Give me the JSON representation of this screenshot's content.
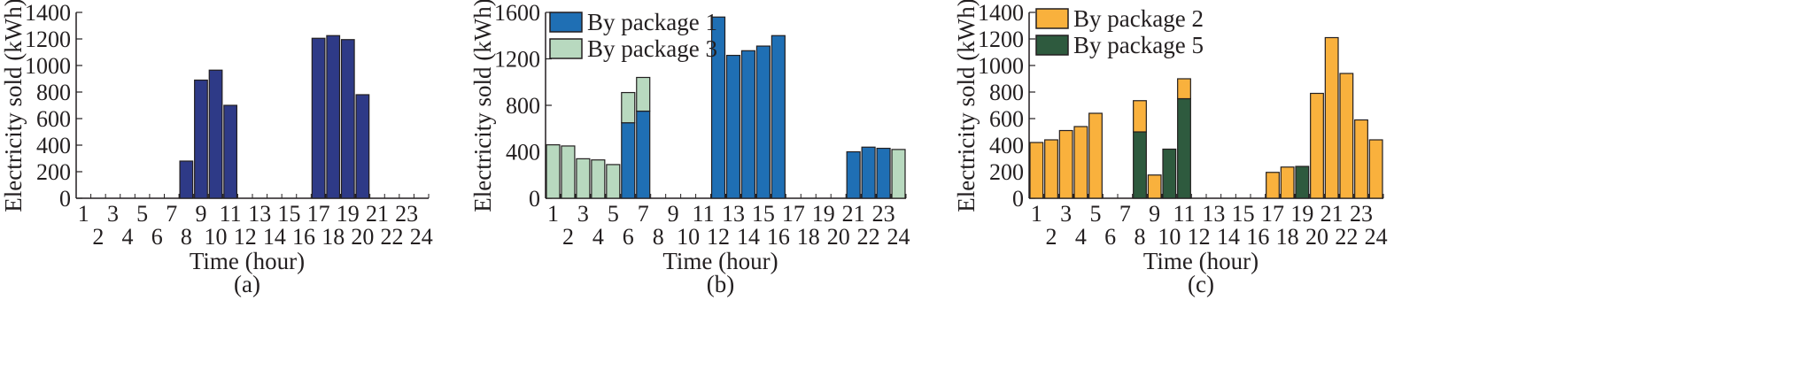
{
  "chart_data": [
    {
      "type": "bar",
      "panel_label": "(a)",
      "xlabel": "Time (hour)",
      "ylabel": "Electricity sold (kWh)",
      "ylim": [
        0,
        1400
      ],
      "yticks": [
        0,
        200,
        400,
        600,
        800,
        1000,
        1200,
        1400
      ],
      "categories": [
        "1",
        "2",
        "3",
        "4",
        "5",
        "6",
        "7",
        "8",
        "9",
        "10",
        "11",
        "12",
        "13",
        "14",
        "15",
        "16",
        "17",
        "18",
        "19",
        "20",
        "21",
        "22",
        "23",
        "24"
      ],
      "legend": "none",
      "series": [
        {
          "color": "#2e3a87",
          "values": [
            0,
            0,
            0,
            0,
            0,
            0,
            0,
            280,
            890,
            965,
            700,
            0,
            0,
            0,
            0,
            0,
            1205,
            1225,
            1195,
            780,
            0,
            0,
            0,
            0
          ]
        }
      ]
    },
    {
      "type": "bar",
      "panel_label": "(b)",
      "xlabel": "Time (hour)",
      "ylabel": "Electricity sold (kWh)",
      "ylim": [
        0,
        1600
      ],
      "yticks": [
        0,
        400,
        800,
        1200,
        1600
      ],
      "categories": [
        "1",
        "2",
        "3",
        "4",
        "5",
        "6",
        "7",
        "8",
        "9",
        "10",
        "11",
        "12",
        "13",
        "14",
        "15",
        "16",
        "17",
        "18",
        "19",
        "20",
        "21",
        "22",
        "23",
        "24"
      ],
      "legend": "top-left",
      "stacked": true,
      "series": [
        {
          "name": "By package 1",
          "color": "#1f6fb4",
          "values": [
            0,
            0,
            0,
            0,
            0,
            650,
            750,
            0,
            0,
            0,
            0,
            1560,
            1230,
            1270,
            1310,
            1400,
            0,
            0,
            0,
            0,
            400,
            440,
            430,
            0
          ]
        },
        {
          "name": "By package 3",
          "color": "#b8d9bf",
          "values": [
            460,
            450,
            340,
            330,
            290,
            260,
            290,
            0,
            0,
            0,
            0,
            0,
            0,
            0,
            0,
            0,
            0,
            0,
            0,
            0,
            0,
            0,
            0,
            420
          ]
        }
      ]
    },
    {
      "type": "bar",
      "panel_label": "(c)",
      "xlabel": "Time (hour)",
      "ylabel": "Electricity sold (kWh)",
      "ylim": [
        0,
        1400
      ],
      "yticks": [
        0,
        200,
        400,
        600,
        800,
        1000,
        1200,
        1400
      ],
      "categories": [
        "1",
        "2",
        "3",
        "4",
        "5",
        "6",
        "7",
        "8",
        "9",
        "10",
        "11",
        "12",
        "13",
        "14",
        "15",
        "16",
        "17",
        "18",
        "19",
        "20",
        "21",
        "22",
        "23",
        "24"
      ],
      "legend": "top-left",
      "stacked": true,
      "series": [
        {
          "name": "By package 5",
          "color": "#2e5a3e",
          "values": [
            0,
            0,
            0,
            0,
            0,
            0,
            0,
            500,
            0,
            370,
            750,
            0,
            0,
            0,
            0,
            0,
            0,
            0,
            240,
            0,
            0,
            0,
            0,
            0
          ]
        },
        {
          "name": "By package 2",
          "color": "#f9b13d",
          "values": [
            420,
            440,
            510,
            540,
            640,
            0,
            0,
            235,
            175,
            0,
            150,
            0,
            0,
            0,
            0,
            0,
            195,
            235,
            0,
            790,
            1210,
            940,
            590,
            440
          ]
        }
      ]
    }
  ]
}
